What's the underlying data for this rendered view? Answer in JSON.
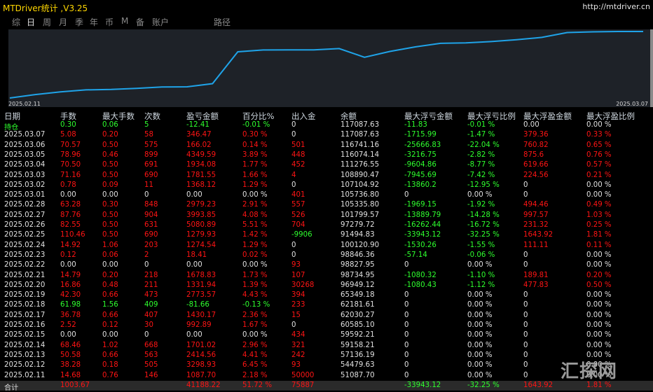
{
  "app": {
    "title": "MTDriver统计 ,V3.25",
    "url": "http://mtdriver.cn"
  },
  "tabs": [
    {
      "label": "综",
      "selected": false
    },
    {
      "label": "日",
      "selected": true
    },
    {
      "label": "周",
      "selected": false
    },
    {
      "label": "月",
      "selected": false
    },
    {
      "label": "季",
      "selected": false
    },
    {
      "label": "年",
      "selected": false
    },
    {
      "label": "币",
      "selected": false
    },
    {
      "label": "M",
      "selected": false
    },
    {
      "label": "备",
      "selected": false
    },
    {
      "label": "账户",
      "selected": false
    },
    {
      "label": "路径",
      "selected": false
    }
  ],
  "chart": {
    "start_date": "2025.02.11",
    "end_date": "2025.03.07",
    "line_color": "#1fa3e8",
    "bg_color": "#1e2228",
    "balance": [
      51087.7,
      54479.63,
      57136.19,
      59158.21,
      59592.21,
      60585.1,
      62030.27,
      62181.61,
      65349.18,
      96949.12,
      98734.95,
      98827.95,
      98846.36,
      100120.9,
      91494.83,
      97279.72,
      101799.57,
      105335.8,
      105736.8,
      107104.92,
      108890.47,
      111276.55,
      116074.14,
      116741.16,
      117087.63,
      117087.63
    ]
  },
  "table": {
    "headers": [
      "日期",
      "手数",
      "最大手数",
      "次数",
      "盈亏金额",
      "百分比%",
      "出入金",
      "余额",
      "最大浮亏金额",
      "最大浮亏比例",
      "最大浮盈金额",
      "最大浮盈比例"
    ],
    "rows": [
      {
        "c": [
          "持仓",
          "0.30",
          "0.06",
          "5",
          "-12.41",
          "-0.01 %",
          "0",
          "117087.63",
          "-11.83",
          "-0.01 %",
          "0.00",
          "0.00 %"
        ],
        "s": [
          "gr",
          "gr",
          "gr",
          "gr",
          "gr",
          "gr",
          "wt",
          "wt",
          "gr",
          "gr",
          "wt",
          "wt"
        ]
      },
      {
        "c": [
          "2025.03.07",
          "5.08",
          "0.20",
          "58",
          "346.47",
          "0.30 %",
          "0",
          "117087.63",
          "-1715.99",
          "-1.47 %",
          "379.36",
          "0.33 %"
        ],
        "s": [
          "wt",
          "rw",
          "rw",
          "rw",
          "rw",
          "rw",
          "wt",
          "wt",
          "gr",
          "gr",
          "rw",
          "rw"
        ]
      },
      {
        "c": [
          "2025.03.06",
          "70.57",
          "0.50",
          "575",
          "166.02",
          "0.14 %",
          "501",
          "116741.16",
          "-25666.83",
          "-22.04 %",
          "760.82",
          "0.65 %"
        ],
        "s": [
          "wt",
          "rw",
          "rw",
          "rw",
          "rw",
          "rw",
          "rw",
          "wt",
          "gr",
          "gr",
          "rw",
          "rw"
        ]
      },
      {
        "c": [
          "2025.03.05",
          "78.96",
          "0.46",
          "899",
          "4349.59",
          "3.89 %",
          "448",
          "116074.14",
          "-3216.75",
          "-2.82 %",
          "875.6",
          "0.76 %"
        ],
        "s": [
          "wt",
          "rw",
          "rw",
          "rw",
          "rw",
          "rw",
          "rw",
          "wt",
          "gr",
          "gr",
          "rw",
          "rw"
        ]
      },
      {
        "c": [
          "2025.03.04",
          "70.50",
          "0.50",
          "691",
          "1934.08",
          "1.77 %",
          "452",
          "111276.55",
          "-9604.86",
          "-8.77 %",
          "619.66",
          "0.57 %"
        ],
        "s": [
          "wt",
          "rw",
          "rw",
          "rw",
          "rw",
          "rw",
          "rw",
          "wt",
          "gr",
          "gr",
          "rw",
          "rw"
        ]
      },
      {
        "c": [
          "2025.03.03",
          "71.16",
          "0.50",
          "690",
          "1781.55",
          "1.66 %",
          "4",
          "108890.47",
          "-7945.69",
          "-7.42 %",
          "224.56",
          "0.21 %"
        ],
        "s": [
          "wt",
          "rw",
          "rw",
          "rw",
          "rw",
          "rw",
          "rw",
          "wt",
          "gr",
          "gr",
          "rw",
          "rw"
        ]
      },
      {
        "c": [
          "2025.03.02",
          "0.78",
          "0.09",
          "11",
          "1368.12",
          "1.29 %",
          "0",
          "107104.92",
          "-13860.2",
          "-12.95 %",
          "0",
          "0.00 %"
        ],
        "s": [
          "wt",
          "rw",
          "rw",
          "rw",
          "rw",
          "rw",
          "wt",
          "wt",
          "gr",
          "gr",
          "wt",
          "wt"
        ]
      },
      {
        "c": [
          "2025.03.01",
          "0.00",
          "0.00",
          "0",
          "0.00",
          "0.00 %",
          "401",
          "105736.80",
          "0",
          "0.00 %",
          "0",
          "0.00 %"
        ],
        "s": [
          "wt",
          "wt",
          "wt",
          "wt",
          "wt",
          "wt",
          "rw",
          "wt",
          "wt",
          "wt",
          "wt",
          "wt"
        ]
      },
      {
        "c": [
          "2025.02.28",
          "63.28",
          "0.30",
          "848",
          "2979.23",
          "2.91 %",
          "557",
          "105335.80",
          "-1969.15",
          "-1.92 %",
          "494.46",
          "0.49 %"
        ],
        "s": [
          "wt",
          "rw",
          "rw",
          "rw",
          "rw",
          "rw",
          "rw",
          "wt",
          "gr",
          "gr",
          "rw",
          "rw"
        ]
      },
      {
        "c": [
          "2025.02.27",
          "87.76",
          "0.50",
          "904",
          "3993.85",
          "4.08 %",
          "526",
          "101799.57",
          "-13889.79",
          "-14.28 %",
          "997.57",
          "1.03 %"
        ],
        "s": [
          "wt",
          "rw",
          "rw",
          "rw",
          "rw",
          "rw",
          "rw",
          "wt",
          "gr",
          "gr",
          "rw",
          "rw"
        ]
      },
      {
        "c": [
          "2025.02.26",
          "82.55",
          "0.50",
          "631",
          "5080.89",
          "5.51 %",
          "704",
          "97279.72",
          "-16262.44",
          "-16.72 %",
          "231.32",
          "0.25 %"
        ],
        "s": [
          "wt",
          "rw",
          "rw",
          "rw",
          "rw",
          "rw",
          "rw",
          "wt",
          "gr",
          "gr",
          "rw",
          "rw"
        ]
      },
      {
        "c": [
          "2025.02.25",
          "110.46",
          "0.50",
          "690",
          "1279.93",
          "1.42 %",
          "-9906",
          "91494.83",
          "-33943.12",
          "-32.25 %",
          "1643.92",
          "1.81 %"
        ],
        "s": [
          "wt",
          "rw",
          "rw",
          "rw",
          "rw",
          "rw",
          "gr",
          "wt",
          "gr",
          "gr",
          "rw",
          "rw"
        ]
      },
      {
        "c": [
          "2025.02.24",
          "14.92",
          "1.06",
          "203",
          "1274.54",
          "1.29 %",
          "0",
          "100120.90",
          "-1530.26",
          "-1.55 %",
          "111.11",
          "0.11 %"
        ],
        "s": [
          "wt",
          "rw",
          "rw",
          "rw",
          "rw",
          "rw",
          "wt",
          "wt",
          "gr",
          "gr",
          "rw",
          "rw"
        ]
      },
      {
        "c": [
          "2025.02.23",
          "0.12",
          "0.06",
          "2",
          "18.41",
          "0.02 %",
          "0",
          "98846.36",
          "-57.14",
          "-0.06 %",
          "0",
          "0.00 %"
        ],
        "s": [
          "wt",
          "rw",
          "rw",
          "rw",
          "rw",
          "rw",
          "wt",
          "wt",
          "gr",
          "gr",
          "wt",
          "wt"
        ]
      },
      {
        "c": [
          "2025.02.22",
          "0.00",
          "0.00",
          "0",
          "0.00",
          "0.00 %",
          "93",
          "98827.95",
          "0",
          "0.00 %",
          "0",
          "0.00 %"
        ],
        "s": [
          "wt",
          "wt",
          "wt",
          "wt",
          "wt",
          "wt",
          "rw",
          "wt",
          "wt",
          "wt",
          "wt",
          "wt"
        ]
      },
      {
        "c": [
          "2025.02.21",
          "14.79",
          "0.20",
          "218",
          "1678.83",
          "1.73 %",
          "107",
          "98734.95",
          "-1080.32",
          "-1.10 %",
          "189.81",
          "0.20 %"
        ],
        "s": [
          "wt",
          "rw",
          "rw",
          "rw",
          "rw",
          "rw",
          "rw",
          "wt",
          "gr",
          "gr",
          "rw",
          "rw"
        ]
      },
      {
        "c": [
          "2025.02.20",
          "16.86",
          "0.48",
          "211",
          "1331.94",
          "1.39 %",
          "30268",
          "96949.12",
          "-1080.43",
          "-1.12 %",
          "477.83",
          "0.50 %"
        ],
        "s": [
          "wt",
          "rw",
          "rw",
          "rw",
          "rw",
          "rw",
          "rw",
          "wt",
          "gr",
          "gr",
          "rw",
          "rw"
        ]
      },
      {
        "c": [
          "2025.02.19",
          "42.30",
          "0.66",
          "473",
          "2773.57",
          "4.43 %",
          "394",
          "65349.18",
          "0",
          "0.00 %",
          "0",
          "0.00 %"
        ],
        "s": [
          "wt",
          "rw",
          "rw",
          "rw",
          "rw",
          "rw",
          "rw",
          "wt",
          "wt",
          "wt",
          "wt",
          "wt"
        ]
      },
      {
        "c": [
          "2025.02.18",
          "61.98",
          "1.56",
          "409",
          "-81.66",
          "-0.13 %",
          "233",
          "62181.61",
          "0",
          "0.00 %",
          "0",
          "0.00 %"
        ],
        "s": [
          "wt",
          "gr",
          "gr",
          "gr",
          "gr",
          "gr",
          "rw",
          "wt",
          "wt",
          "wt",
          "wt",
          "wt"
        ]
      },
      {
        "c": [
          "2025.02.17",
          "36.78",
          "0.66",
          "407",
          "1430.17",
          "2.36 %",
          "15",
          "62030.27",
          "0",
          "0.00 %",
          "0",
          "0.00 %"
        ],
        "s": [
          "wt",
          "rw",
          "rw",
          "rw",
          "rw",
          "rw",
          "rw",
          "wt",
          "wt",
          "wt",
          "wt",
          "wt"
        ]
      },
      {
        "c": [
          "2025.02.16",
          "2.52",
          "0.12",
          "30",
          "992.89",
          "1.67 %",
          "0",
          "60585.10",
          "0",
          "0.00 %",
          "0",
          "0.00 %"
        ],
        "s": [
          "wt",
          "rw",
          "rw",
          "rw",
          "rw",
          "rw",
          "wt",
          "wt",
          "wt",
          "wt",
          "wt",
          "wt"
        ]
      },
      {
        "c": [
          "2025.02.15",
          "0.00",
          "0.00",
          "0",
          "0.00",
          "0.00 %",
          "434",
          "59592.21",
          "0",
          "0.00 %",
          "0",
          "0.00 %"
        ],
        "s": [
          "wt",
          "wt",
          "wt",
          "wt",
          "wt",
          "wt",
          "rw",
          "wt",
          "wt",
          "wt",
          "wt",
          "wt"
        ]
      },
      {
        "c": [
          "2025.02.14",
          "68.46",
          "1.02",
          "668",
          "1701.02",
          "2.96 %",
          "321",
          "59158.21",
          "0",
          "0.00 %",
          "0",
          "0.00 %"
        ],
        "s": [
          "wt",
          "rw",
          "rw",
          "rw",
          "rw",
          "rw",
          "rw",
          "wt",
          "wt",
          "wt",
          "wt",
          "wt"
        ]
      },
      {
        "c": [
          "2025.02.13",
          "50.58",
          "0.66",
          "563",
          "2414.56",
          "4.41 %",
          "242",
          "57136.19",
          "0",
          "0.00 %",
          "0",
          "0.00 %"
        ],
        "s": [
          "wt",
          "rw",
          "rw",
          "rw",
          "rw",
          "rw",
          "rw",
          "wt",
          "wt",
          "wt",
          "wt",
          "wt"
        ]
      },
      {
        "c": [
          "2025.02.12",
          "38.28",
          "0.18",
          "505",
          "3298.93",
          "6.45 %",
          "93",
          "54479.63",
          "0",
          "0.00 %",
          "0",
          "0.00 %"
        ],
        "s": [
          "wt",
          "rw",
          "rw",
          "rw",
          "rw",
          "rw",
          "rw",
          "wt",
          "wt",
          "wt",
          "wt",
          "wt"
        ]
      },
      {
        "c": [
          "2025.02.11",
          "14.68",
          "0.76",
          "146",
          "1087.70",
          "2.18 %",
          "50000",
          "51087.70",
          "0",
          "0.00 %",
          "0",
          "0.00 %"
        ],
        "s": [
          "wt",
          "rw",
          "rw",
          "rw",
          "rw",
          "rw",
          "rw",
          "wt",
          "wt",
          "wt",
          "wt",
          "wt"
        ]
      },
      {
        "c": [
          "合计",
          "1003.67",
          "",
          "",
          "41188.22",
          "51.72 %",
          "75887",
          "",
          "-33943.12",
          "-32.25 %",
          "1643.92",
          "1.81 %"
        ],
        "s": [
          "wt",
          "rw",
          "rw",
          "rw",
          "rw",
          "rw",
          "rw",
          "wt",
          "gr",
          "gr",
          "rw",
          "rw"
        ]
      }
    ]
  },
  "watermark": {
    "text": "汇探网"
  }
}
